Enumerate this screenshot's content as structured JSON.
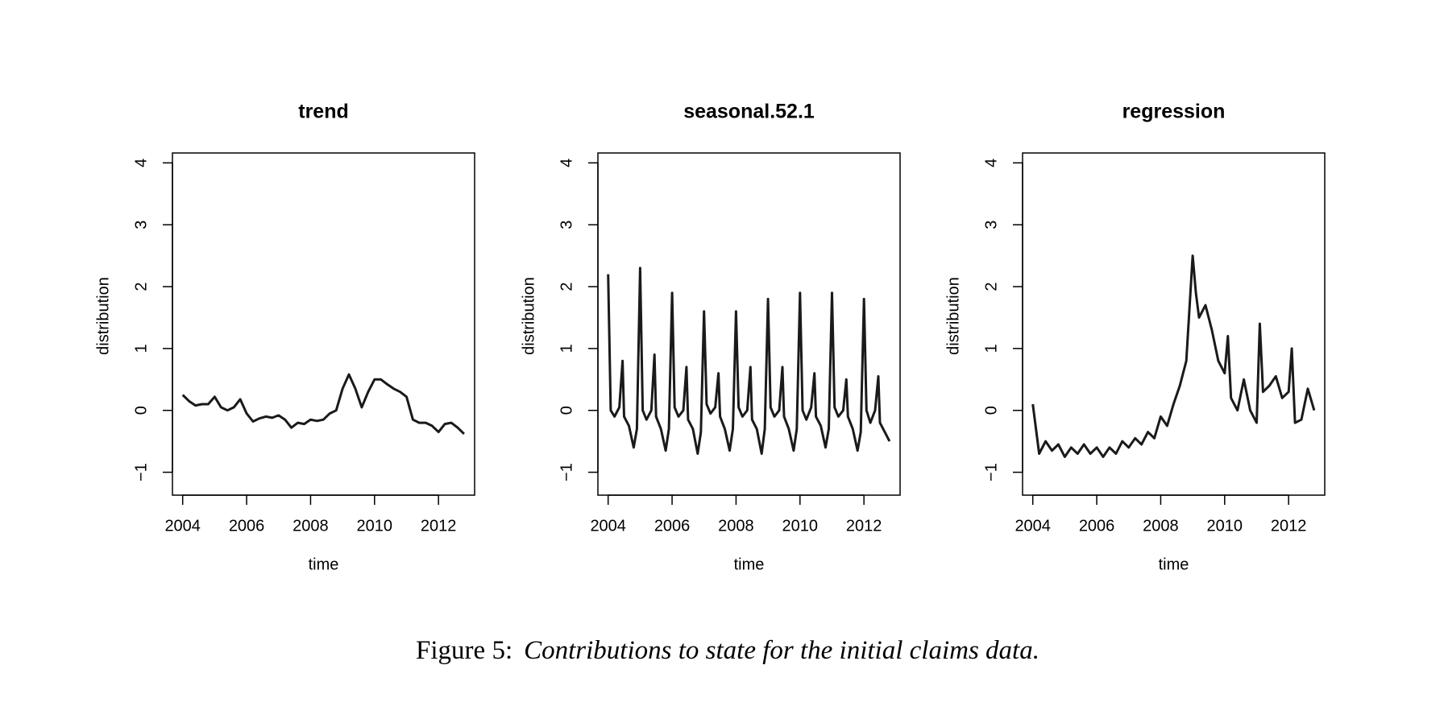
{
  "chart_data": [
    {
      "type": "line",
      "title": "trend",
      "xlabel": "time",
      "ylabel": "distribution",
      "color": "#1a1a1a",
      "x": [
        2004.0,
        2004.2,
        2004.4,
        2004.6,
        2004.8,
        2005.0,
        2005.2,
        2005.4,
        2005.6,
        2005.8,
        2006.0,
        2006.2,
        2006.4,
        2006.6,
        2006.8,
        2007.0,
        2007.2,
        2007.4,
        2007.6,
        2007.8,
        2008.0,
        2008.2,
        2008.4,
        2008.6,
        2008.8,
        2009.0,
        2009.2,
        2009.4,
        2009.6,
        2009.8,
        2010.0,
        2010.2,
        2010.4,
        2010.6,
        2010.8,
        2011.0,
        2011.2,
        2011.4,
        2011.6,
        2011.8,
        2012.0,
        2012.2,
        2012.4,
        2012.6,
        2012.8
      ],
      "values": [
        0.25,
        0.15,
        0.08,
        0.1,
        0.1,
        0.22,
        0.05,
        0.0,
        0.05,
        0.18,
        -0.05,
        -0.18,
        -0.13,
        -0.1,
        -0.12,
        -0.08,
        -0.15,
        -0.28,
        -0.2,
        -0.22,
        -0.15,
        -0.17,
        -0.15,
        -0.05,
        0.0,
        0.35,
        0.58,
        0.35,
        0.05,
        0.3,
        0.5,
        0.5,
        0.42,
        0.35,
        0.3,
        0.22,
        -0.15,
        -0.2,
        -0.2,
        -0.25,
        -0.35,
        -0.22,
        -0.2,
        -0.28,
        -0.38
      ],
      "xlim": [
        2003.68,
        2013.13
      ],
      "ylim": [
        -1.37,
        4.16
      ],
      "xticks": [
        2004,
        2006,
        2008,
        2010,
        2012
      ],
      "yticks": [
        {
          "value": -1,
          "label": "−1"
        },
        0,
        1,
        2,
        3,
        4
      ]
    },
    {
      "type": "line",
      "title": "seasonal.52.1",
      "xlabel": "time",
      "ylabel": "distribution",
      "color": "#1a1a1a",
      "x": [
        2004,
        2004.08,
        2004.2,
        2004.35,
        2004.45,
        2004.5,
        2004.65,
        2004.8,
        2004.9,
        2005,
        2005.08,
        2005.2,
        2005.35,
        2005.45,
        2005.5,
        2005.65,
        2005.8,
        2005.9,
        2006,
        2006.08,
        2006.2,
        2006.35,
        2006.45,
        2006.5,
        2006.65,
        2006.8,
        2006.9,
        2007,
        2007.08,
        2007.2,
        2007.35,
        2007.45,
        2007.5,
        2007.65,
        2007.8,
        2007.9,
        2008,
        2008.08,
        2008.2,
        2008.35,
        2008.45,
        2008.5,
        2008.65,
        2008.8,
        2008.9,
        2009,
        2009.08,
        2009.2,
        2009.35,
        2009.45,
        2009.5,
        2009.65,
        2009.8,
        2009.9,
        2010,
        2010.08,
        2010.2,
        2010.35,
        2010.45,
        2010.5,
        2010.65,
        2010.8,
        2010.9,
        2011,
        2011.08,
        2011.2,
        2011.35,
        2011.45,
        2011.5,
        2011.65,
        2011.8,
        2011.9,
        2012,
        2012.08,
        2012.2,
        2012.35,
        2012.45,
        2012.5,
        2012.65,
        2012.8
      ],
      "values": [
        2.2,
        0.0,
        -0.1,
        0.05,
        0.8,
        -0.1,
        -0.25,
        -0.6,
        -0.3,
        2.3,
        0.0,
        -0.15,
        0.0,
        0.9,
        -0.1,
        -0.3,
        -0.65,
        -0.3,
        1.9,
        0.05,
        -0.1,
        0.0,
        0.7,
        -0.15,
        -0.3,
        -0.7,
        -0.35,
        1.6,
        0.1,
        -0.05,
        0.05,
        0.6,
        -0.1,
        -0.3,
        -0.65,
        -0.3,
        1.6,
        0.05,
        -0.1,
        0.0,
        0.7,
        -0.15,
        -0.3,
        -0.7,
        -0.3,
        1.8,
        0.05,
        -0.1,
        0.0,
        0.7,
        -0.1,
        -0.3,
        -0.65,
        -0.3,
        1.9,
        0.0,
        -0.15,
        0.05,
        0.6,
        -0.1,
        -0.25,
        -0.6,
        -0.3,
        1.9,
        0.05,
        -0.1,
        0.0,
        0.5,
        -0.1,
        -0.3,
        -0.65,
        -0.35,
        1.8,
        0.0,
        -0.2,
        0.0,
        0.55,
        -0.2,
        -0.35,
        -0.5
      ],
      "xlim": [
        2003.68,
        2013.13
      ],
      "ylim": [
        -1.37,
        4.16
      ],
      "xticks": [
        2004,
        2006,
        2008,
        2010,
        2012
      ],
      "yticks": [
        {
          "value": -1,
          "label": "−1"
        },
        0,
        1,
        2,
        3,
        4
      ]
    },
    {
      "type": "line",
      "title": "regression",
      "xlabel": "time",
      "ylabel": "distribution",
      "color": "#1a1a1a",
      "x": [
        2004.0,
        2004.2,
        2004.4,
        2004.6,
        2004.8,
        2005.0,
        2005.2,
        2005.4,
        2005.6,
        2005.8,
        2006.0,
        2006.2,
        2006.4,
        2006.6,
        2006.8,
        2007.0,
        2007.2,
        2007.4,
        2007.6,
        2007.8,
        2008.0,
        2008.2,
        2008.4,
        2008.6,
        2008.8,
        2009.0,
        2009.1,
        2009.2,
        2009.4,
        2009.6,
        2009.8,
        2010.0,
        2010.1,
        2010.2,
        2010.4,
        2010.6,
        2010.8,
        2011.0,
        2011.1,
        2011.2,
        2011.4,
        2011.6,
        2011.8,
        2012.0,
        2012.1,
        2012.2,
        2012.4,
        2012.6,
        2012.8
      ],
      "values": [
        0.1,
        -0.7,
        -0.5,
        -0.65,
        -0.55,
        -0.75,
        -0.6,
        -0.7,
        -0.55,
        -0.7,
        -0.6,
        -0.75,
        -0.6,
        -0.7,
        -0.5,
        -0.6,
        -0.45,
        -0.55,
        -0.35,
        -0.45,
        -0.1,
        -0.25,
        0.1,
        0.4,
        0.8,
        2.5,
        1.9,
        1.5,
        1.7,
        1.3,
        0.8,
        0.6,
        1.2,
        0.2,
        0.0,
        0.5,
        0.0,
        -0.2,
        1.4,
        0.3,
        0.4,
        0.55,
        0.2,
        0.3,
        1.0,
        -0.2,
        -0.15,
        0.35,
        0.0
      ],
      "xlim": [
        2003.68,
        2013.13
      ],
      "ylim": [
        -1.37,
        4.16
      ],
      "xticks": [
        2004,
        2006,
        2008,
        2010,
        2012
      ],
      "yticks": [
        {
          "value": -1,
          "label": "−1"
        },
        0,
        1,
        2,
        3,
        4
      ]
    }
  ],
  "caption": {
    "label": "Figure 5:",
    "text": "Contributions to state for the initial claims data."
  }
}
